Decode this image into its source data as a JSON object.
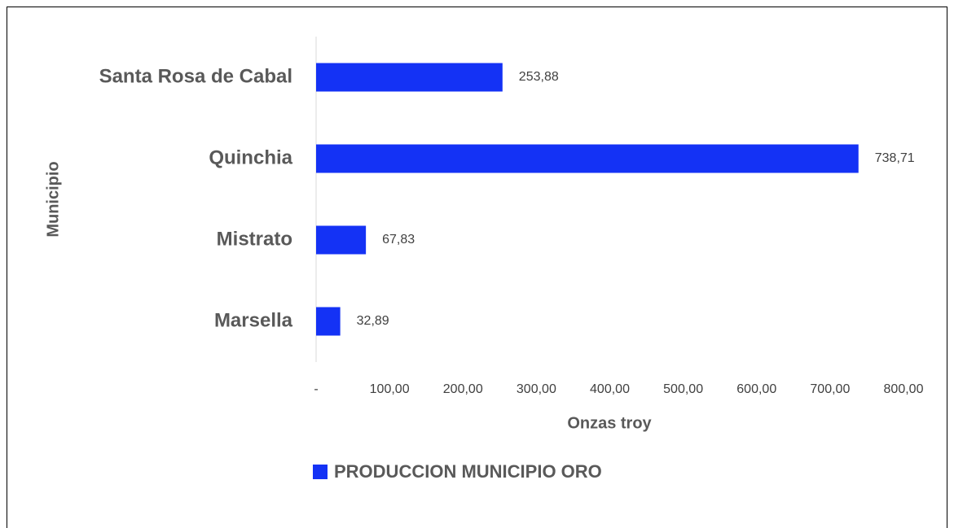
{
  "chart_data": {
    "type": "bar",
    "orientation": "horizontal",
    "categories": [
      "Santa Rosa de Cabal",
      "Quinchia",
      "Mistrato",
      "Marsella"
    ],
    "series": [
      {
        "name": "PRODUCCION MUNICIPIO ORO",
        "color": "#1432f5",
        "values": [
          253.88,
          738.71,
          67.83,
          32.89
        ],
        "value_labels": [
          "253,88",
          "738,71",
          "67,83",
          "32,89"
        ]
      }
    ],
    "xlabel": "Onzas troy",
    "ylabel": "Municipio",
    "xlim": [
      0,
      800
    ],
    "xticks": [
      {
        "value": 0,
        "label": "-"
      },
      {
        "value": 100,
        "label": "100,00"
      },
      {
        "value": 200,
        "label": "200,00"
      },
      {
        "value": 300,
        "label": "300,00"
      },
      {
        "value": 400,
        "label": "400,00"
      },
      {
        "value": 500,
        "label": "500,00"
      },
      {
        "value": 600,
        "label": "600,00"
      },
      {
        "value": 700,
        "label": "700,00"
      },
      {
        "value": 800,
        "label": "800,00"
      }
    ],
    "grid": false,
    "legend": "bottom"
  }
}
